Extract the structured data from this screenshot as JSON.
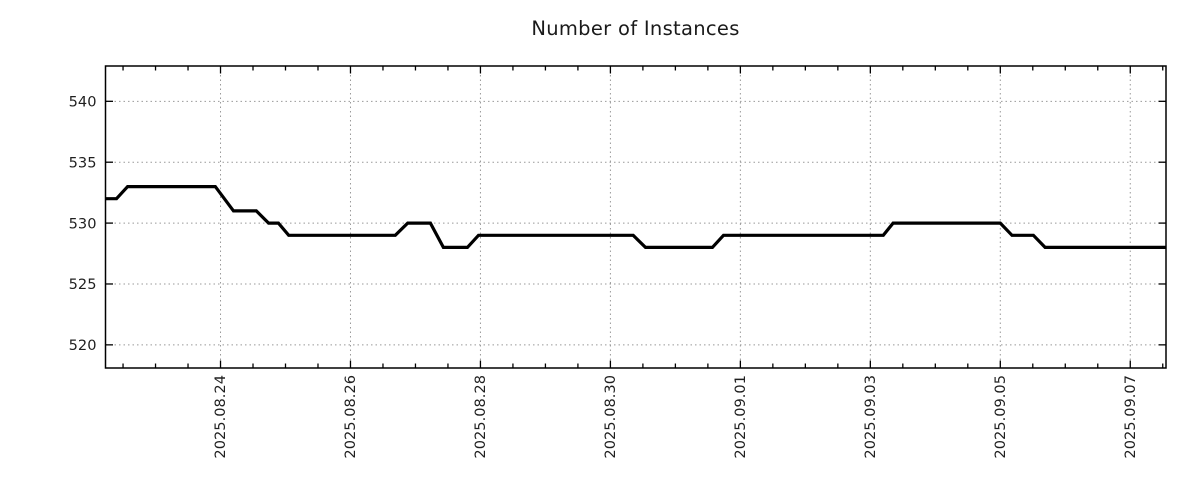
{
  "page": {
    "background": "#ffffff"
  },
  "chart_data": {
    "type": "line",
    "title": "Number of Instances",
    "legend": "none",
    "grid": {
      "style": "dotted",
      "color": "#999999",
      "on": true
    },
    "axis_color": "#000000",
    "x_axis": {
      "unit": "days_since_2025-08-22_00:00",
      "lim": [
        0.23,
        16.55
      ],
      "major_ticks": [
        {
          "d": 2,
          "label": "2025.08.24"
        },
        {
          "d": 4,
          "label": "2025.08.26"
        },
        {
          "d": 6,
          "label": "2025.08.28"
        },
        {
          "d": 8,
          "label": "2025.08.30"
        },
        {
          "d": 10,
          "label": "2025.09.01"
        },
        {
          "d": 12,
          "label": "2025.09.03"
        },
        {
          "d": 14,
          "label": "2025.09.05"
        },
        {
          "d": 16,
          "label": "2025.09.07"
        }
      ],
      "minor_tick_step": 0.5,
      "label_rotation_deg": -90
    },
    "y_axis": {
      "lim": [
        518.1,
        542.9
      ],
      "major_ticks": [
        520,
        525,
        530,
        535,
        540
      ]
    },
    "series": [
      {
        "name": "instances",
        "color": "#000000",
        "stroke_width": 3.2,
        "points": [
          [
            0.23,
            532
          ],
          [
            0.4,
            532
          ],
          [
            0.57,
            533
          ],
          [
            1.92,
            533
          ],
          [
            2.2,
            531
          ],
          [
            2.55,
            531
          ],
          [
            2.74,
            530
          ],
          [
            2.89,
            530
          ],
          [
            3.05,
            529
          ],
          [
            4.69,
            529
          ],
          [
            4.88,
            530
          ],
          [
            5.23,
            530
          ],
          [
            5.43,
            528
          ],
          [
            5.8,
            528
          ],
          [
            5.97,
            529
          ],
          [
            8.35,
            529
          ],
          [
            8.54,
            528
          ],
          [
            9.57,
            528
          ],
          [
            9.74,
            529
          ],
          [
            12.2,
            529
          ],
          [
            12.35,
            530
          ],
          [
            14.0,
            530
          ],
          [
            14.18,
            529
          ],
          [
            14.51,
            529
          ],
          [
            14.69,
            528
          ],
          [
            16.55,
            528
          ]
        ]
      }
    ]
  }
}
